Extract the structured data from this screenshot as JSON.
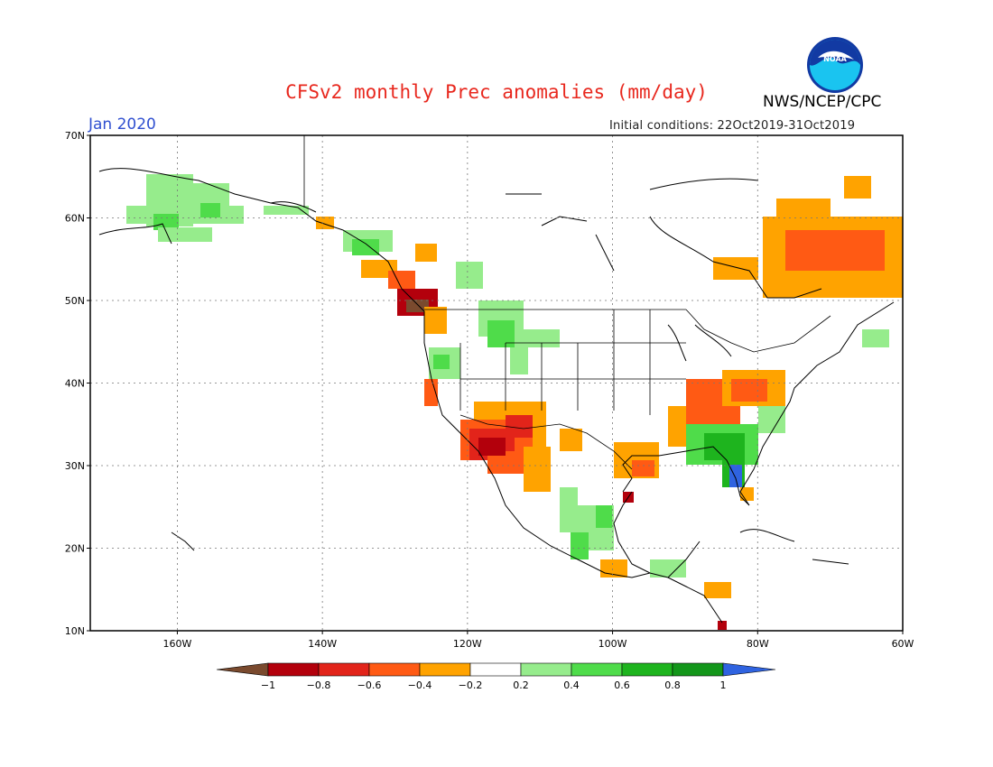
{
  "header": {
    "title": "CFSv2 monthly Prec anomalies (mm/day)",
    "period": "Jan 2020",
    "initial_conditions": "Initial conditions: 22Oct2019-31Oct2019",
    "agency": "NWS/NCEP/CPC",
    "logo_text": "NOAA"
  },
  "map": {
    "lat_labels": [
      "70N",
      "60N",
      "50N",
      "40N",
      "30N",
      "20N",
      "10N"
    ],
    "lon_labels": [
      "160W",
      "140W",
      "120W",
      "100W",
      "80W",
      "60W"
    ],
    "lon_range": [
      -172,
      -60
    ],
    "lat_range": [
      10,
      70
    ]
  },
  "colorbar": {
    "labels": [
      "−1",
      "−0.8",
      "−0.6",
      "−0.4",
      "−0.2",
      "0.2",
      "0.4",
      "0.6",
      "0.8",
      "1"
    ],
    "colors": [
      "#7a4a2e",
      "#b3000c",
      "#e2241a",
      "#ff5a14",
      "#ffa300",
      "#ffffff",
      "#96ec8c",
      "#4fdc4a",
      "#1eb41e",
      "#13961a",
      "#2f63e0"
    ]
  },
  "colors": {
    "title": "#e8281e",
    "period": "#2f4fd0",
    "noaa_blue": "#123aa3",
    "noaa_cyan": "#1ac4f0"
  }
}
